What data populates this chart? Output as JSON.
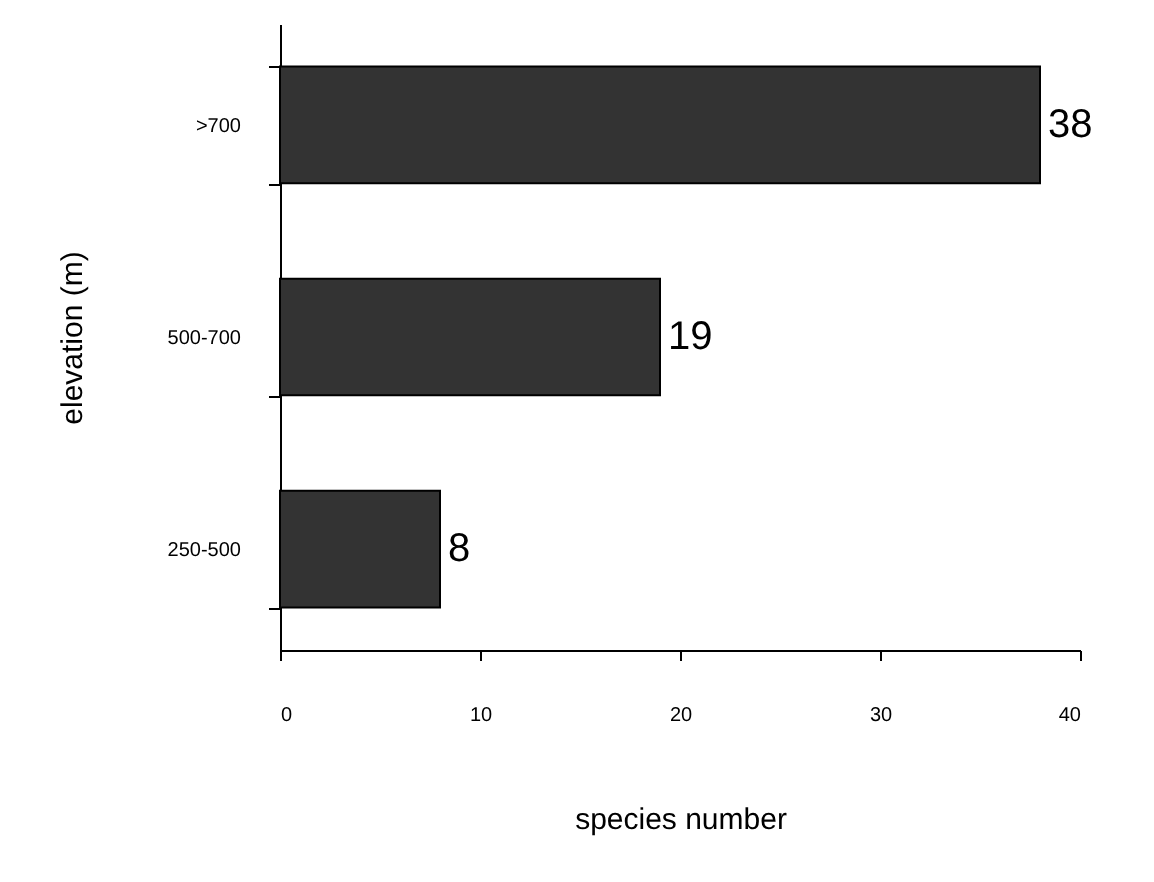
{
  "chart_data": {
    "type": "bar",
    "orientation": "horizontal",
    "xlabel": "species number",
    "ylabel": "elevation (m)",
    "categories": [
      ">700",
      "500-700",
      "250-500"
    ],
    "values": [
      38,
      19,
      8
    ],
    "color": "#333333",
    "xlim": [
      0,
      40
    ],
    "xticks": [
      0,
      10,
      20,
      30,
      40
    ],
    "grid": false,
    "data_labels": true
  }
}
